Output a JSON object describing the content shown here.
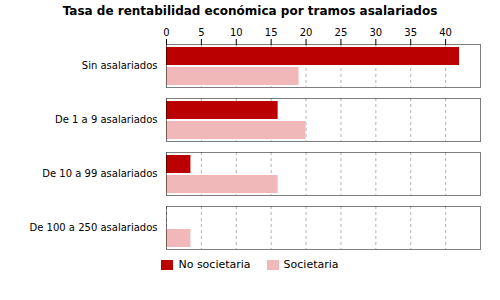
{
  "chart_data": {
    "type": "bar",
    "orientation": "horizontal",
    "title": "Tasa de rentabilidad económica por tramos asalariados",
    "categories": [
      "Sin asalariados",
      "De 1 a 9 asalariados",
      "De 10 a 99 asalariados",
      "De 100 a 250 asalariados"
    ],
    "series": [
      {
        "name": "No societaria",
        "color": "#bb0000",
        "values": [
          42.0,
          16.0,
          3.5,
          0.0
        ]
      },
      {
        "name": "Societaria",
        "color": "#f0b8b8",
        "values": [
          19.0,
          20.0,
          16.0,
          3.5
        ]
      }
    ],
    "xlim": [
      0,
      45
    ],
    "xticks": [
      0,
      5,
      10,
      15,
      20,
      25,
      30,
      35,
      40
    ],
    "grid": true,
    "legend": "bottom"
  }
}
